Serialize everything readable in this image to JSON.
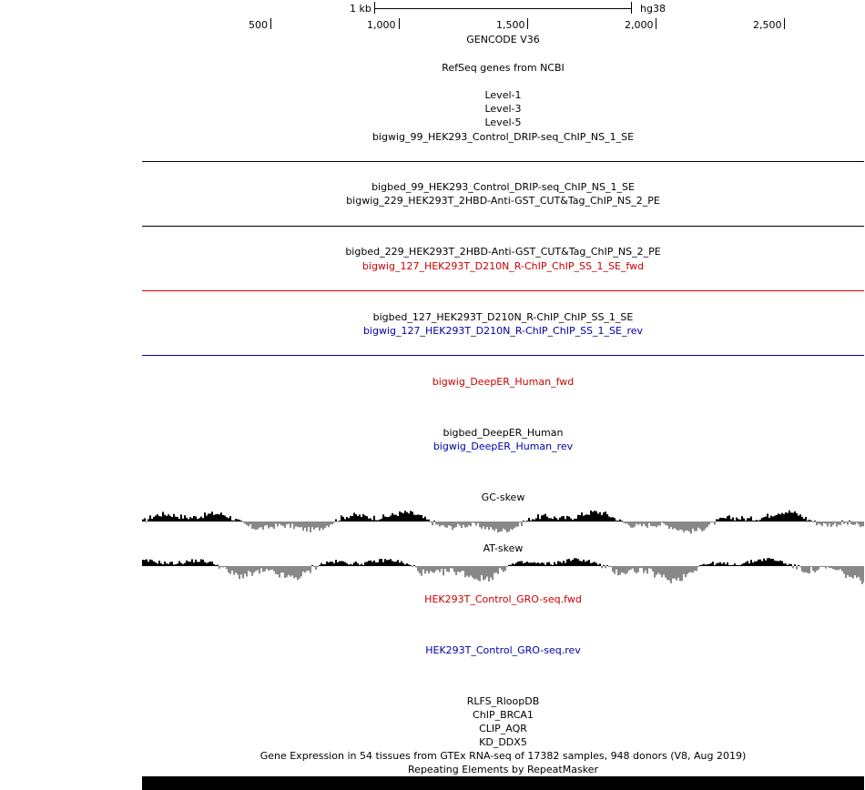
{
  "scale": {
    "bar_label": "1 kb",
    "assembly": "hg38",
    "ticks": [
      "500",
      "1,000",
      "1,500",
      "2,000",
      "2,500"
    ]
  },
  "tracks": [
    {
      "id": "gencode",
      "label": "GENCODE V36",
      "color": "#000000"
    },
    {
      "id": "refseq",
      "label": "RefSeq genes from NCBI",
      "color": "#000000"
    },
    {
      "id": "level1",
      "label": "Level-1",
      "color": "#000000"
    },
    {
      "id": "level3",
      "label": "Level-3",
      "color": "#000000"
    },
    {
      "id": "level5",
      "label": "Level-5",
      "color": "#000000"
    },
    {
      "id": "bigwig99",
      "label": "bigwig_99_HEK293_Control_DRIP-seq_ChIP_NS_1_SE",
      "color": "#000000"
    },
    {
      "id": "bigbed99",
      "label": "bigbed_99_HEK293_Control_DRIP-seq_ChIP_NS_1_SE",
      "color": "#000000"
    },
    {
      "id": "bigwig229",
      "label": "bigwig_229_HEK293T_2HBD-Anti-GST_CUT&Tag_ChIP_NS_2_PE",
      "color": "#000000"
    },
    {
      "id": "bigbed229",
      "label": "bigbed_229_HEK293T_2HBD-Anti-GST_CUT&Tag_ChIP_NS_2_PE",
      "color": "#000000"
    },
    {
      "id": "bigwig127fwd",
      "label": "bigwig_127_HEK293T_D210N_R-ChIP_ChIP_SS_1_SE_fwd",
      "color": "#cc0000"
    },
    {
      "id": "bigbed127",
      "label": "bigbed_127_HEK293T_D210N_R-ChIP_ChIP_SS_1_SE",
      "color": "#000000"
    },
    {
      "id": "bigwig127rev",
      "label": "bigwig_127_HEK293T_D210N_R-ChIP_ChIP_SS_1_SE_rev",
      "color": "#0000aa"
    },
    {
      "id": "deeperfwd",
      "label": "bigwig_DeepER_Human_fwd",
      "color": "#cc0000"
    },
    {
      "id": "deeperbed",
      "label": "bigbed_DeepER_Human",
      "color": "#000000"
    },
    {
      "id": "deeperrev",
      "label": "bigwig_DeepER_Human_rev",
      "color": "#0000aa"
    },
    {
      "id": "gcskew",
      "label": "GC-skew",
      "color": "#000000"
    },
    {
      "id": "atskew",
      "label": "AT-skew",
      "color": "#000000"
    },
    {
      "id": "grofwd",
      "label": "HEK293T_Control_GRO-seq.fwd",
      "color": "#cc0000"
    },
    {
      "id": "grorev",
      "label": "HEK293T_Control_GRO-seq.rev",
      "color": "#0000aa"
    },
    {
      "id": "rlfs",
      "label": "RLFS_RloopDB",
      "color": "#000000"
    },
    {
      "id": "brca1",
      "label": "ChIP_BRCA1",
      "color": "#000000"
    },
    {
      "id": "aqr",
      "label": "CLIP_AQR",
      "color": "#000000"
    },
    {
      "id": "ddx5",
      "label": "KD_DDX5",
      "color": "#000000"
    },
    {
      "id": "gtex",
      "label": "Gene Expression in 54 tissues from GTEx RNA-seq of 17382 samples, 948 donors (V8, Aug 2019)",
      "color": "#000000"
    },
    {
      "id": "rmsk",
      "label": "Repeating Elements by RepeatMasker",
      "color": "#000000"
    }
  ],
  "colors": {
    "positive_fill": "#000000",
    "negative_fill": "#888888",
    "fwd_line": "#cc0000",
    "rev_line": "#0000aa"
  }
}
